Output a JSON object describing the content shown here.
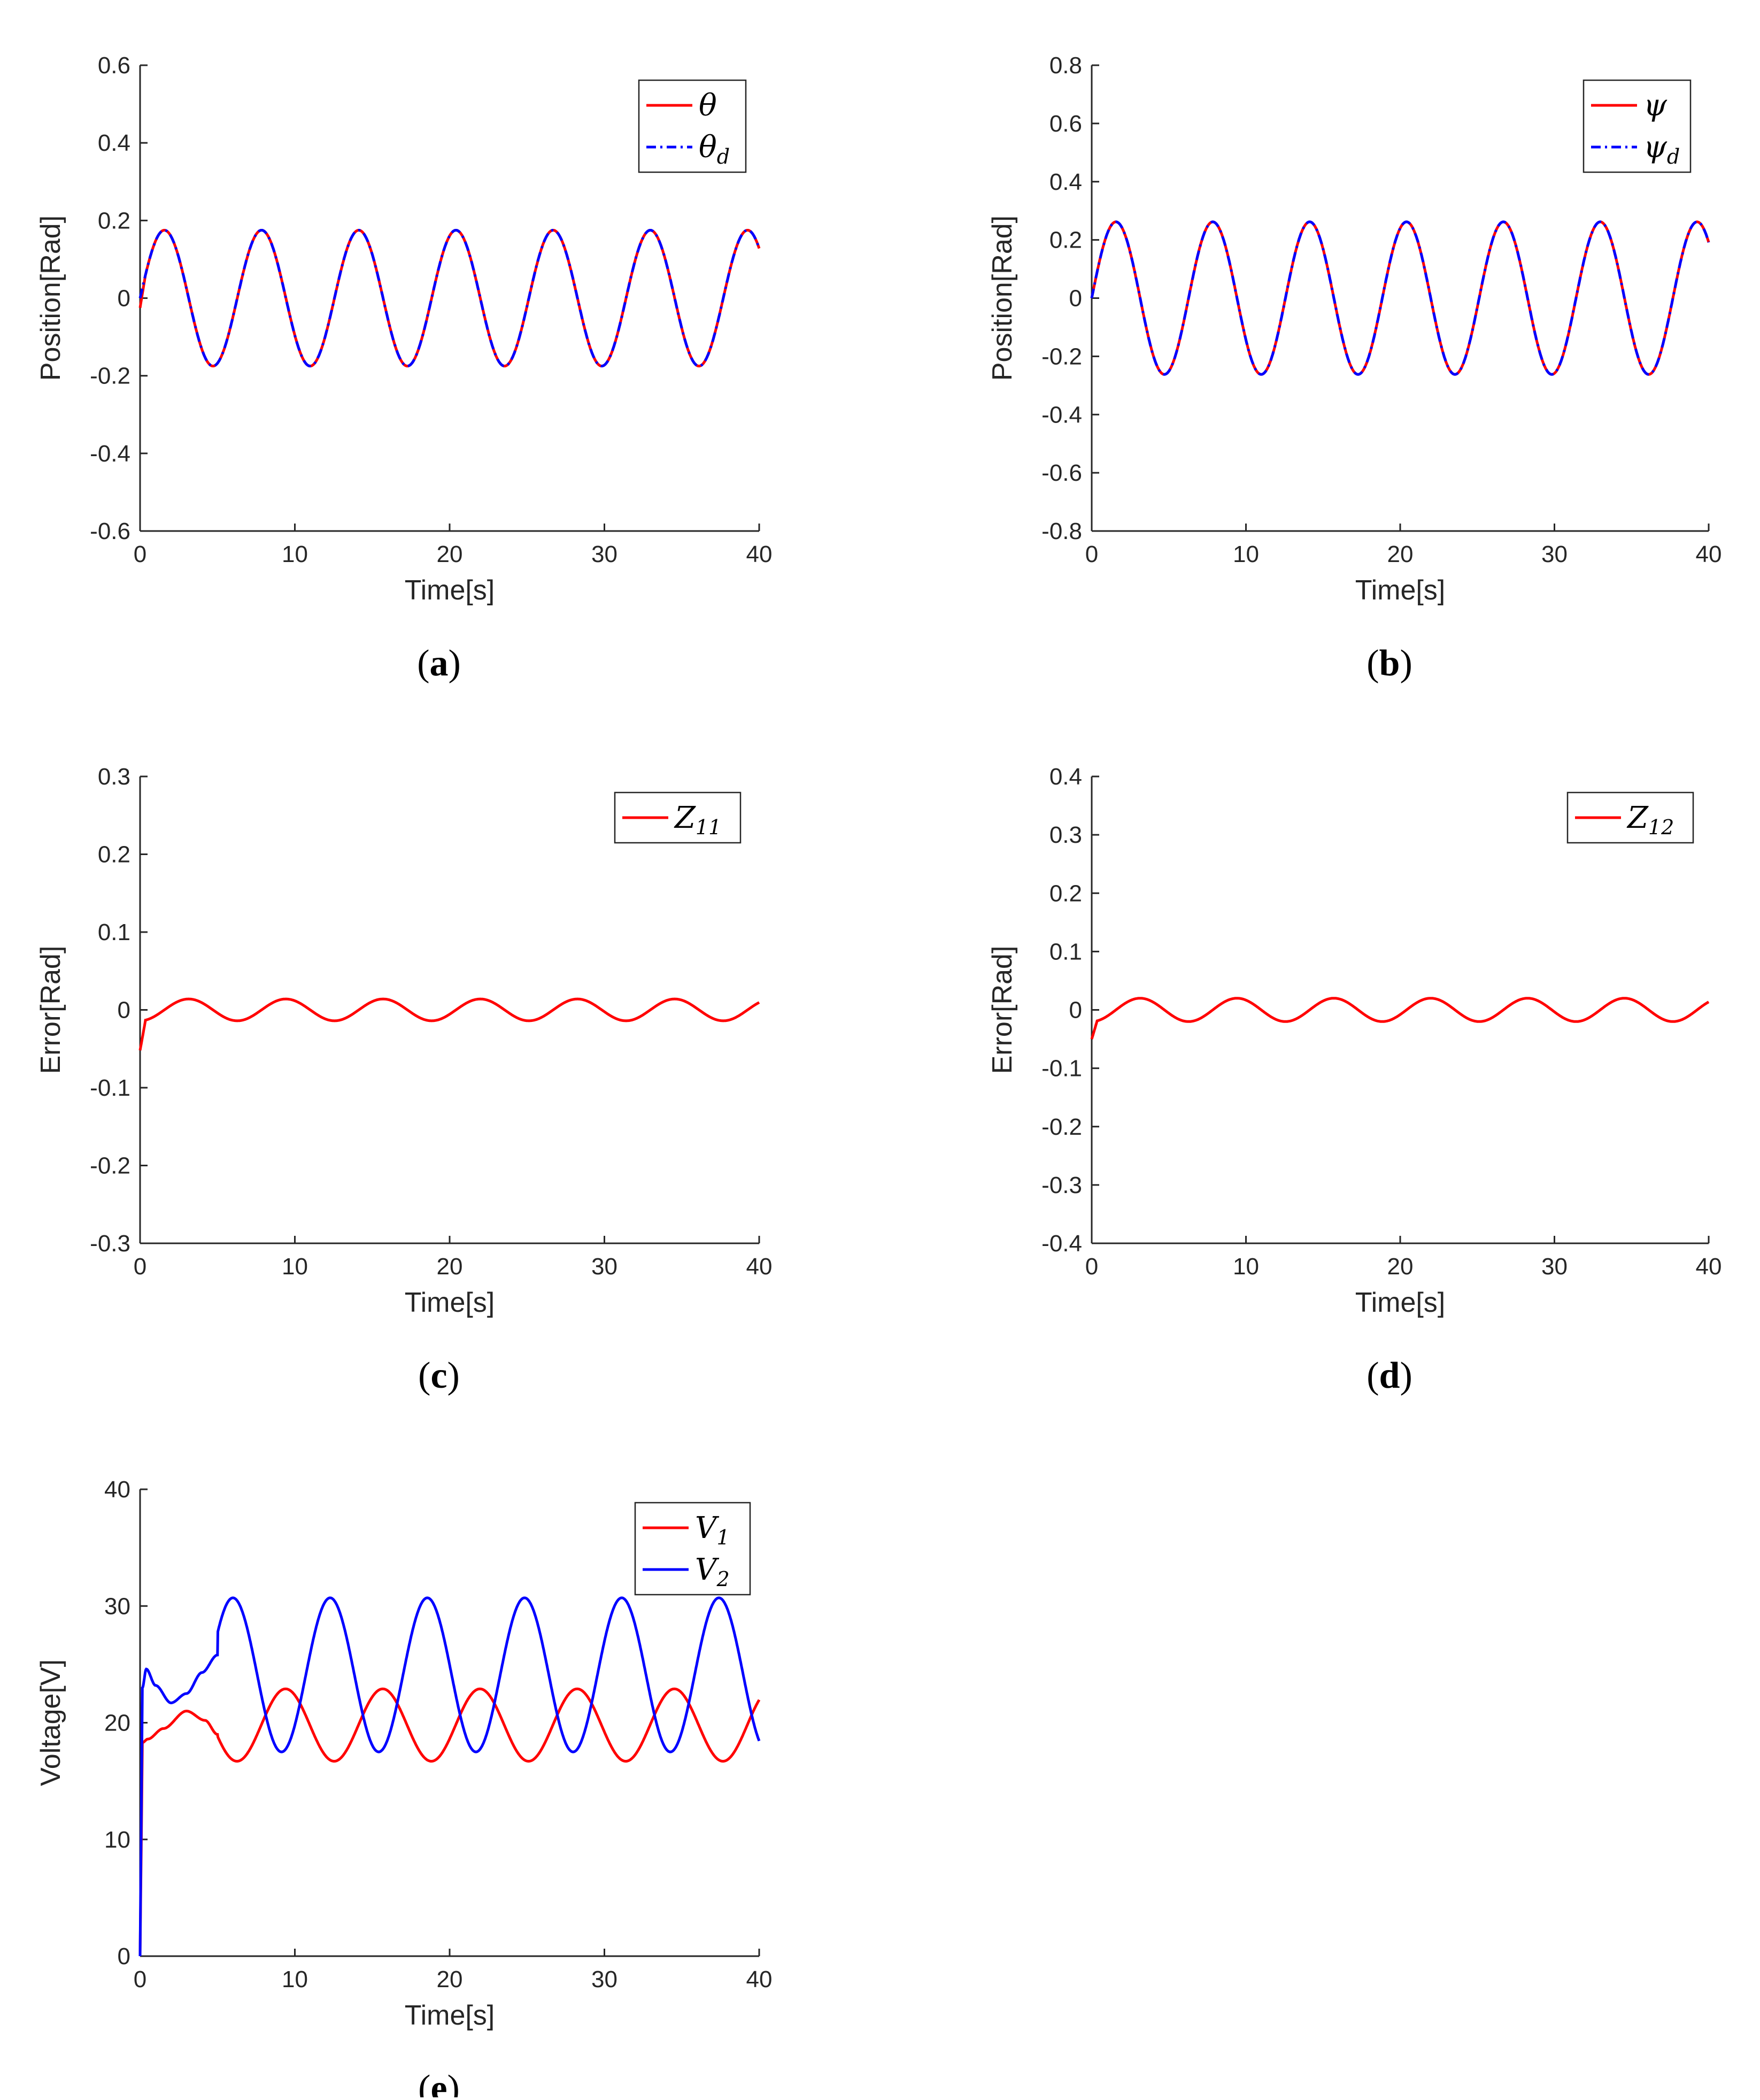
{
  "chart_data": [
    {
      "id": "a",
      "type": "line",
      "caption": "(a)",
      "caption_letter": "a",
      "xlabel": "Time[s]",
      "ylabel": "Position[Rad]",
      "xlim": [
        0,
        40
      ],
      "ylim": [
        -0.6,
        0.6
      ],
      "xticks": [
        0,
        10,
        20,
        30,
        40
      ],
      "yticks": [
        -0.6,
        -0.4,
        -0.2,
        0,
        0.2,
        0.4,
        0.6
      ],
      "legend_position": "top-right",
      "series": [
        {
          "name": "θ",
          "label_base": "θ",
          "label_sub": "",
          "color": "#ff0000",
          "dash": "solid",
          "formula": {
            "kind": "sine",
            "amp": 0.175,
            "period": 6.28,
            "phase": 0,
            "offset": 0,
            "start_dip": -0.025
          }
        },
        {
          "name": "θd",
          "label_base": "θ",
          "label_sub": "d",
          "color": "#0000ff",
          "dash": "dashdot",
          "formula": {
            "kind": "sine",
            "amp": 0.175,
            "period": 6.28,
            "phase": 0,
            "offset": 0
          }
        }
      ]
    },
    {
      "id": "b",
      "type": "line",
      "caption": "(b)",
      "caption_letter": "b",
      "xlabel": "Time[s]",
      "ylabel": "Position[Rad]",
      "xlim": [
        0,
        40
      ],
      "ylim": [
        -0.8,
        0.8
      ],
      "xticks": [
        0,
        10,
        20,
        30,
        40
      ],
      "yticks": [
        -0.8,
        -0.6,
        -0.4,
        -0.2,
        0,
        0.2,
        0.4,
        0.6,
        0.8
      ],
      "legend_position": "top-right",
      "series": [
        {
          "name": "ψ",
          "label_base": "ψ",
          "label_sub": "",
          "color": "#ff0000",
          "dash": "solid",
          "formula": {
            "kind": "sine",
            "amp": 0.262,
            "period": 6.28,
            "phase": 0,
            "offset": 0
          }
        },
        {
          "name": "ψd",
          "label_base": "ψ",
          "label_sub": "d",
          "color": "#0000ff",
          "dash": "dashdot",
          "formula": {
            "kind": "sine",
            "amp": 0.262,
            "period": 6.28,
            "phase": 0,
            "offset": 0
          }
        }
      ]
    },
    {
      "id": "c",
      "type": "line",
      "caption": "(c)",
      "caption_letter": "c",
      "xlabel": "Time[s]",
      "ylabel": "Error[Rad]",
      "xlim": [
        0,
        40
      ],
      "ylim": [
        -0.3,
        0.3
      ],
      "xticks": [
        0,
        10,
        20,
        30,
        40
      ],
      "yticks": [
        -0.3,
        -0.2,
        -0.1,
        0,
        0.1,
        0.2,
        0.3
      ],
      "legend_position": "top-right",
      "series": [
        {
          "name": "Z11",
          "label_base": "Z",
          "label_sub": "11",
          "color": "#ff0000",
          "dash": "solid",
          "formula": {
            "kind": "sine",
            "amp": 0.014,
            "period": 6.28,
            "phase": -1.5708,
            "offset": 0,
            "start_dip": -0.038
          }
        }
      ]
    },
    {
      "id": "d",
      "type": "line",
      "caption": "(d)",
      "caption_letter": "d",
      "xlabel": "Time[s]",
      "ylabel": "Error[Rad]",
      "xlim": [
        0,
        40
      ],
      "ylim": [
        -0.4,
        0.4
      ],
      "xticks": [
        0,
        10,
        20,
        30,
        40
      ],
      "yticks": [
        -0.4,
        -0.3,
        -0.2,
        -0.1,
        0,
        0.1,
        0.2,
        0.3,
        0.4
      ],
      "legend_position": "top-right",
      "series": [
        {
          "name": "Z12",
          "label_base": "Z",
          "label_sub": "12",
          "color": "#ff0000",
          "dash": "solid",
          "formula": {
            "kind": "sine",
            "amp": 0.02,
            "period": 6.28,
            "phase": -1.5708,
            "offset": 0,
            "start_dip": -0.03
          }
        }
      ]
    },
    {
      "id": "e",
      "type": "line",
      "caption": "(e)",
      "caption_letter": "e",
      "xlabel": "Time[s]",
      "ylabel": "Voltage[V]",
      "xlim": [
        0,
        40
      ],
      "ylim": [
        0,
        40
      ],
      "xticks": [
        0,
        10,
        20,
        30,
        40
      ],
      "yticks": [
        0,
        10,
        20,
        30,
        40
      ],
      "legend_position": "top-right",
      "series": [
        {
          "name": "V1",
          "label_base": "V",
          "label_sub": "1",
          "color": "#ff0000",
          "dash": "solid",
          "formula": {
            "kind": "voltage",
            "pre": [
              [
                0,
                0
              ],
              [
                0.15,
                18.3
              ],
              [
                0.5,
                18.6
              ],
              [
                1.5,
                19.5
              ],
              [
                3.0,
                21.0
              ],
              [
                4.2,
                20.2
              ],
              [
                5.0,
                19.0
              ]
            ],
            "switch": 5.0,
            "mid": 19.8,
            "amp": 3.1,
            "period": 6.28,
            "peak": 9.4
          }
        },
        {
          "name": "V2",
          "label_base": "V",
          "label_sub": "2",
          "color": "#0000ff",
          "dash": "solid",
          "formula": {
            "kind": "voltage",
            "pre": [
              [
                0,
                0
              ],
              [
                0.15,
                23.0
              ],
              [
                0.4,
                24.6
              ],
              [
                1.0,
                23.2
              ],
              [
                2.0,
                21.7
              ],
              [
                3.0,
                22.5
              ],
              [
                4.0,
                24.3
              ],
              [
                5.0,
                25.8
              ]
            ],
            "switch": 5.0,
            "mid": 24.1,
            "amp": 6.6,
            "period": 6.28,
            "peak": 6.0
          }
        }
      ]
    }
  ]
}
